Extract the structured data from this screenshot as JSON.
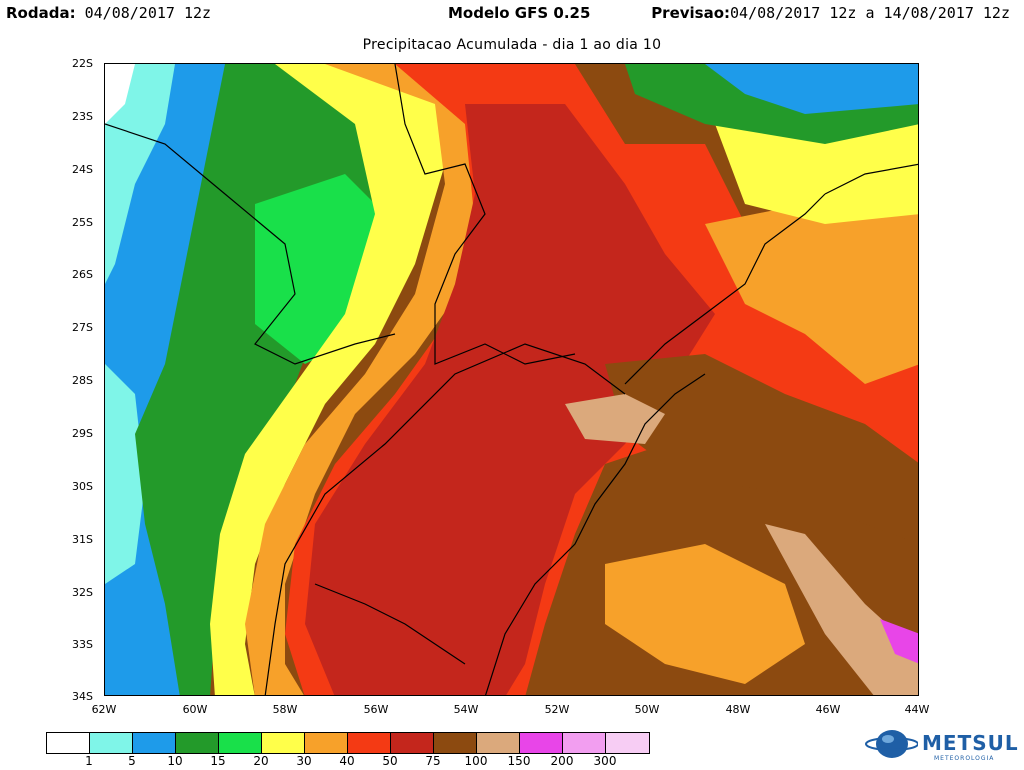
{
  "header": {
    "run_label": "Rodada:",
    "run_value": "04/08/2017 12z",
    "model_label": "Modelo GFS 0.25",
    "forecast_label": "Previsao:",
    "forecast_value": "04/08/2017 12z a 14/08/2017 12z"
  },
  "subtitle": "Precipitacao Acumulada - dia 1 ao dia 10",
  "axes": {
    "lat_labels": [
      "22S",
      "23S",
      "24S",
      "25S",
      "26S",
      "27S",
      "28S",
      "29S",
      "30S",
      "31S",
      "32S",
      "33S",
      "34S"
    ],
    "lon_labels": [
      "62W",
      "60W",
      "58W",
      "56W",
      "54W",
      "52W",
      "50W",
      "48W",
      "46W",
      "44W"
    ]
  },
  "legend": {
    "levels": [
      "1",
      "5",
      "10",
      "15",
      "20",
      "30",
      "40",
      "50",
      "75",
      "100",
      "150",
      "200",
      "300"
    ],
    "colors": [
      "#ffffff",
      "#7ff5e8",
      "#1e9bea",
      "#239a2a",
      "#19e04a",
      "#ffff4a",
      "#f7a12a",
      "#f43a14",
      "#c4261c",
      "#8c4a10",
      "#dba97c",
      "#e845e8",
      "#f29ef0",
      "#f7cdf4"
    ]
  },
  "logo": {
    "text": "METSUL",
    "subtext": "METEOROLOGIA",
    "icon": "globe-icon"
  }
}
